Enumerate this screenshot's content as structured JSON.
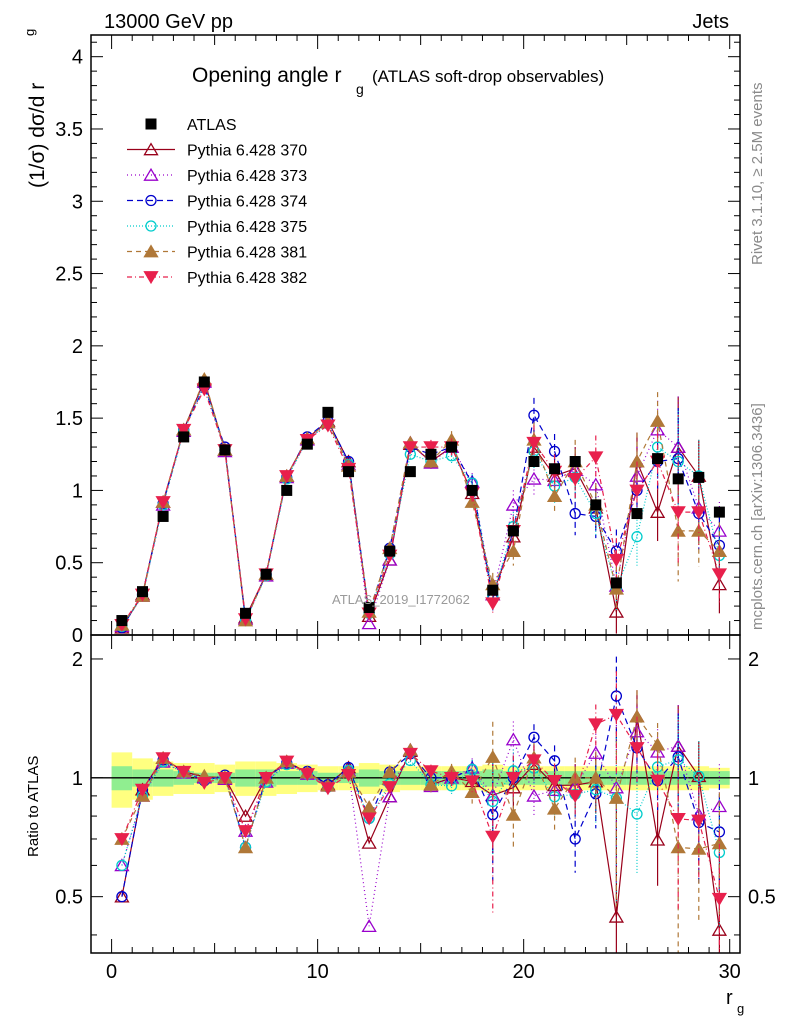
{
  "header": {
    "left": "13000 GeV pp",
    "right": "Jets"
  },
  "side_labels": {
    "rivet": "Rivet 3.1.10, ≥ 2.5M events",
    "mcplots": "mcplots.cern.ch [arXiv:1306.3436]"
  },
  "chart_data": {
    "type": "line",
    "title_main": "Opening angle r",
    "title_sub": "g",
    "title_rest": "(ATLAS soft-drop observables)",
    "watermark": "ATLAS_2019_I1772062",
    "xlabel": "r",
    "xlabel_sub": "g",
    "ylabel": "(1/σ) dσ/d r",
    "ylabel_sub": "g",
    "ratio_ylabel": "Ratio to ATLAS",
    "xlim": [
      -1,
      30.5
    ],
    "ylim": [
      0,
      4.15
    ],
    "ratio_ylim": [
      0.36,
      2.3
    ],
    "x_ticks": [
      0,
      10,
      20,
      30
    ],
    "y_ticks": [
      "0",
      "0.5",
      "1",
      "1.5",
      "2",
      "2.5",
      "3",
      "3.5",
      "4"
    ],
    "ratio_ticks": [
      "0.5",
      "1",
      "2"
    ],
    "legend_placement": "top-left",
    "x": [
      0.5,
      1.5,
      2.5,
      3.5,
      4.5,
      5.5,
      6.5,
      7.5,
      8.5,
      9.5,
      10.5,
      11.5,
      12.5,
      13.5,
      14.5,
      15.5,
      16.5,
      17.5,
      18.5,
      19.5,
      20.5,
      21.5,
      22.5,
      23.5,
      24.5,
      25.5,
      26.5,
      27.5,
      28.5,
      29.5
    ],
    "band_bins": [
      [
        0,
        1
      ],
      [
        1,
        2
      ],
      [
        2,
        3
      ],
      [
        3,
        4
      ],
      [
        4,
        5
      ],
      [
        5,
        6
      ],
      [
        6,
        7
      ],
      [
        7,
        8
      ],
      [
        8,
        9
      ],
      [
        9,
        10
      ],
      [
        10,
        11
      ],
      [
        11,
        12
      ],
      [
        12,
        13
      ],
      [
        13,
        14
      ],
      [
        14,
        15
      ],
      [
        15,
        16
      ],
      [
        16,
        17
      ],
      [
        17,
        18
      ],
      [
        18,
        19
      ],
      [
        19,
        20
      ],
      [
        20,
        21
      ],
      [
        21,
        22
      ],
      [
        22,
        23
      ],
      [
        23,
        24
      ],
      [
        24,
        25
      ],
      [
        25,
        26
      ],
      [
        26,
        27
      ],
      [
        27,
        28
      ],
      [
        28,
        29
      ],
      [
        29,
        30
      ]
    ],
    "band_stat": [
      0.07,
      0.05,
      0.05,
      0.04,
      0.03,
      0.03,
      0.05,
      0.05,
      0.04,
      0.04,
      0.03,
      0.03,
      0.05,
      0.04,
      0.04,
      0.04,
      0.04,
      0.04,
      0.05,
      0.04,
      0.04,
      0.04,
      0.04,
      0.04,
      0.04,
      0.04,
      0.04,
      0.04,
      0.04,
      0.04
    ],
    "band_total": [
      0.16,
      0.12,
      0.1,
      0.09,
      0.09,
      0.08,
      0.1,
      0.1,
      0.09,
      0.08,
      0.07,
      0.07,
      0.09,
      0.08,
      0.07,
      0.07,
      0.07,
      0.07,
      0.08,
      0.07,
      0.07,
      0.07,
      0.07,
      0.07,
      0.07,
      0.07,
      0.07,
      0.07,
      0.07,
      0.06
    ],
    "data_series": {
      "name": "ATLAS",
      "values": [
        0.1,
        0.3,
        0.82,
        1.37,
        1.75,
        1.28,
        0.15,
        0.42,
        1.0,
        1.32,
        1.54,
        1.13,
        0.19,
        0.58,
        1.13,
        1.25,
        1.3,
        1.0,
        0.31,
        0.72,
        1.2,
        1.15,
        1.2,
        0.9,
        0.36,
        0.84,
        1.22,
        1.08,
        1.09,
        0.85
      ]
    },
    "series": [
      {
        "name": "Pythia 6.428 370",
        "color": "#99001a",
        "dash": "solid",
        "marker": "triangle-open",
        "values": [
          0.05,
          0.28,
          0.92,
          1.42,
          1.76,
          1.28,
          0.12,
          0.42,
          1.1,
          1.36,
          1.48,
          1.2,
          0.13,
          0.52,
          1.32,
          1.2,
          1.3,
          0.98,
          0.28,
          0.68,
          1.3,
          1.1,
          1.15,
          0.88,
          0.16,
          1.2,
          0.85,
          1.3,
          1.1,
          0.35
        ],
        "errors": [
          0.01,
          0.01,
          0.02,
          0.03,
          0.03,
          0.03,
          0.01,
          0.01,
          0.02,
          0.02,
          0.03,
          0.03,
          0.01,
          0.02,
          0.04,
          0.05,
          0.06,
          0.06,
          0.08,
          0.1,
          0.12,
          0.12,
          0.15,
          0.15,
          0.15,
          0.2,
          0.2,
          0.35,
          0.25,
          0.2
        ]
      },
      {
        "name": "Pythia 6.428 373",
        "color": "#9900cc",
        "dash": "1,3",
        "marker": "triangle-open",
        "values": [
          0.06,
          0.27,
          0.9,
          1.41,
          1.75,
          1.27,
          0.11,
          0.41,
          1.09,
          1.35,
          1.47,
          1.18,
          0.08,
          0.52,
          1.33,
          1.19,
          1.3,
          1.06,
          0.28,
          0.9,
          1.08,
          1.07,
          1.14,
          1.04,
          0.34,
          1.1,
          1.42,
          1.3,
          0.88,
          0.72
        ],
        "errors": [
          0.01,
          0.01,
          0.02,
          0.03,
          0.03,
          0.03,
          0.01,
          0.01,
          0.02,
          0.02,
          0.03,
          0.03,
          0.01,
          0.02,
          0.04,
          0.05,
          0.06,
          0.06,
          0.08,
          0.1,
          0.12,
          0.12,
          0.15,
          0.15,
          0.15,
          0.2,
          0.2,
          0.35,
          0.25,
          0.2
        ]
      },
      {
        "name": "Pythia 6.428 374",
        "color": "#0000cc",
        "dash": "6,4",
        "marker": "circle-open",
        "values": [
          0.05,
          0.28,
          0.91,
          1.42,
          1.72,
          1.3,
          0.1,
          0.42,
          1.09,
          1.37,
          1.48,
          1.2,
          0.15,
          0.6,
          1.3,
          1.25,
          1.3,
          1.05,
          0.25,
          0.72,
          1.52,
          1.27,
          0.84,
          0.82,
          0.58,
          1.0,
          1.2,
          1.22,
          0.84,
          0.62
        ],
        "errors": [
          0.01,
          0.01,
          0.02,
          0.03,
          0.03,
          0.03,
          0.01,
          0.01,
          0.02,
          0.02,
          0.03,
          0.03,
          0.01,
          0.02,
          0.04,
          0.05,
          0.06,
          0.06,
          0.08,
          0.1,
          0.12,
          0.12,
          0.15,
          0.15,
          0.15,
          0.2,
          0.2,
          0.35,
          0.25,
          0.2
        ]
      },
      {
        "name": "Pythia 6.428 375",
        "color": "#00cccc",
        "dash": "1,2",
        "marker": "circle-open",
        "values": [
          0.06,
          0.27,
          0.9,
          1.41,
          1.73,
          1.28,
          0.1,
          0.41,
          1.08,
          1.35,
          1.46,
          1.18,
          0.15,
          0.56,
          1.25,
          1.2,
          1.24,
          1.05,
          0.27,
          0.75,
          1.27,
          1.03,
          1.09,
          0.84,
          0.32,
          0.68,
          1.3,
          1.2,
          1.1,
          0.55
        ],
        "errors": [
          0.01,
          0.01,
          0.02,
          0.03,
          0.03,
          0.03,
          0.01,
          0.01,
          0.02,
          0.02,
          0.03,
          0.03,
          0.01,
          0.02,
          0.04,
          0.05,
          0.06,
          0.06,
          0.08,
          0.1,
          0.12,
          0.12,
          0.15,
          0.15,
          0.15,
          0.2,
          0.2,
          0.35,
          0.25,
          0.2
        ]
      },
      {
        "name": "Pythia 6.428 381",
        "color": "#b07838",
        "dash": "5,4",
        "marker": "triangle-filled",
        "values": [
          0.07,
          0.27,
          0.92,
          1.42,
          1.77,
          1.28,
          0.1,
          0.42,
          1.1,
          1.36,
          1.47,
          1.17,
          0.16,
          0.6,
          1.33,
          1.2,
          1.35,
          0.92,
          0.35,
          0.58,
          1.35,
          0.96,
          1.2,
          0.9,
          0.32,
          1.2,
          1.48,
          0.72,
          0.72,
          0.58
        ],
        "errors": [
          0.01,
          0.01,
          0.02,
          0.03,
          0.03,
          0.03,
          0.01,
          0.01,
          0.02,
          0.02,
          0.03,
          0.03,
          0.01,
          0.02,
          0.04,
          0.05,
          0.06,
          0.06,
          0.08,
          0.1,
          0.12,
          0.12,
          0.15,
          0.15,
          0.15,
          0.2,
          0.2,
          0.35,
          0.25,
          0.2
        ]
      },
      {
        "name": "Pythia 6.428 382",
        "color": "#e8204c",
        "dash": "5,3,1,3",
        "marker": "triangle-down-filled",
        "values": [
          0.07,
          0.28,
          0.92,
          1.42,
          1.7,
          1.28,
          0.11,
          0.42,
          1.1,
          1.35,
          1.45,
          1.15,
          0.15,
          0.55,
          1.3,
          1.3,
          1.3,
          0.98,
          0.22,
          0.72,
          1.33,
          1.13,
          1.08,
          1.23,
          0.52,
          1.0,
          1.2,
          0.85,
          0.85,
          0.42
        ],
        "errors": [
          0.01,
          0.01,
          0.02,
          0.03,
          0.03,
          0.03,
          0.01,
          0.01,
          0.02,
          0.02,
          0.03,
          0.03,
          0.01,
          0.02,
          0.04,
          0.05,
          0.06,
          0.06,
          0.08,
          0.1,
          0.12,
          0.12,
          0.15,
          0.15,
          0.15,
          0.2,
          0.2,
          0.35,
          0.25,
          0.2
        ]
      }
    ]
  }
}
